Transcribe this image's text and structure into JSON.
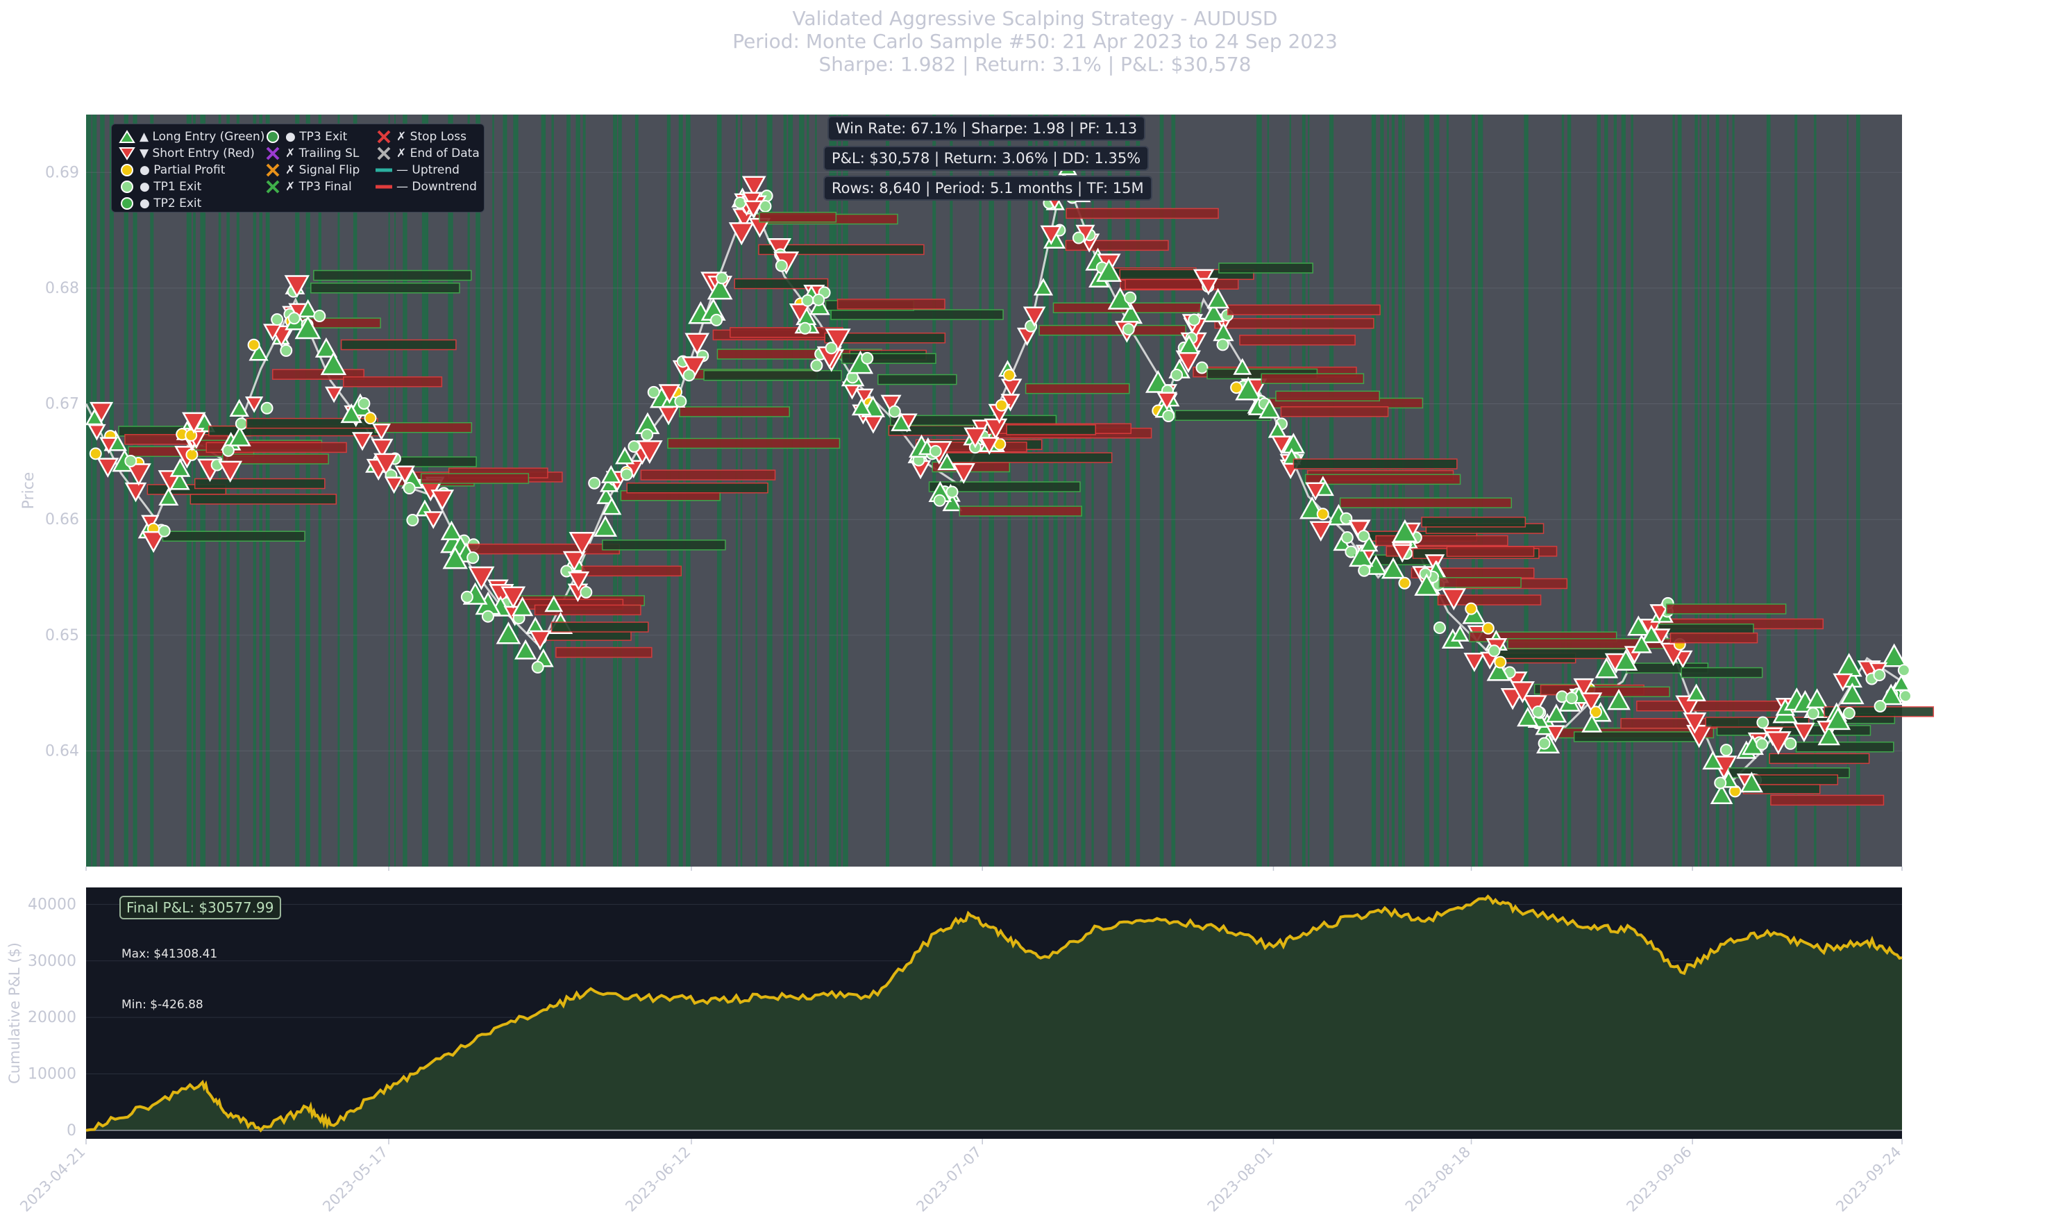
{
  "title": {
    "line1": "Validated Aggressive Scalping Strategy - AUDUSD",
    "line2": "Period: Monte Carlo Sample #50: 21 Apr 2023 to 24 Sep 2023",
    "line3": "Sharpe: 1.982 | Return: 3.1% | P&L: $30,578"
  },
  "stats": {
    "line1": "Win Rate: 67.1%  |  Sharpe: 1.98  |  PF: 1.13",
    "line2": "P&L: $30,578  |  Return: 3.06%  |  DD: 1.35%",
    "line3": "Rows: 8,640  |  Period: 5.1 months  |  TF: 15M"
  },
  "legend": [
    {
      "icon": "triangle-up-green",
      "label": "▲ Long Entry (Green)"
    },
    {
      "icon": "triangle-down-red",
      "label": "▼ Short Entry (Red)"
    },
    {
      "icon": "circle-yellow",
      "label": "● Partial Profit"
    },
    {
      "icon": "circle-lightgreen",
      "label": "● TP1 Exit"
    },
    {
      "icon": "circle-green",
      "label": "● TP2 Exit"
    },
    {
      "icon": "circle-darkgreen",
      "label": "● TP3 Exit"
    },
    {
      "icon": "x-purple",
      "label": "✗ Trailing SL"
    },
    {
      "icon": "x-orange",
      "label": "✗ Signal Flip"
    },
    {
      "icon": "x-green",
      "label": "✗ TP3 Final"
    },
    {
      "icon": "x-red",
      "label": "✗ Stop Loss"
    },
    {
      "icon": "x-gray",
      "label": "✗ End of Data"
    },
    {
      "icon": "line-teal",
      "label": "— Uptrend"
    },
    {
      "icon": "line-red",
      "label": "— Downtrend"
    }
  ],
  "colors": {
    "price_bg": "#4b4f58",
    "band_green": "#1f6b45",
    "long": "#3fae4a",
    "short": "#e03c3c",
    "pnl_line": "#e0b511",
    "pnl_bg": "#131722",
    "pnl_fill": "#253d2b",
    "axis_text": "#c4c7d4"
  },
  "chart_data": [
    {
      "type": "line",
      "name": "price",
      "ylabel": "Price",
      "ylim": [
        0.63,
        0.695
      ],
      "xlim": [
        "2023-04-21",
        "2023-09-24"
      ],
      "yticks": [
        0.64,
        0.65,
        0.66,
        0.67,
        0.68,
        0.69
      ],
      "xticks": [
        "2023-04-21",
        "2023-05-17",
        "2023-06-12",
        "2023-07-07",
        "2023-08-01",
        "2023-08-18",
        "2023-09-06",
        "2023-09-24"
      ],
      "x": [
        "2023-04-21",
        "2023-04-24",
        "2023-04-27",
        "2023-04-30",
        "2023-05-03",
        "2023-05-06",
        "2023-05-09",
        "2023-05-12",
        "2023-05-15",
        "2023-05-18",
        "2023-05-21",
        "2023-05-24",
        "2023-05-27",
        "2023-05-30",
        "2023-06-02",
        "2023-06-05",
        "2023-06-08",
        "2023-06-11",
        "2023-06-14",
        "2023-06-17",
        "2023-06-20",
        "2023-06-23",
        "2023-06-26",
        "2023-06-29",
        "2023-07-02",
        "2023-07-05",
        "2023-07-08",
        "2023-07-11",
        "2023-07-14",
        "2023-07-17",
        "2023-07-20",
        "2023-07-23",
        "2023-07-26",
        "2023-07-29",
        "2023-08-01",
        "2023-08-04",
        "2023-08-07",
        "2023-08-10",
        "2023-08-13",
        "2023-08-16",
        "2023-08-19",
        "2023-08-22",
        "2023-08-25",
        "2023-08-28",
        "2023-08-31",
        "2023-09-03",
        "2023-09-06",
        "2023-09-09",
        "2023-09-12",
        "2023-09-15",
        "2023-09-18",
        "2023-09-21",
        "2023-09-24"
      ],
      "values": [
        0.67,
        0.664,
        0.66,
        0.667,
        0.665,
        0.673,
        0.679,
        0.672,
        0.668,
        0.663,
        0.662,
        0.656,
        0.652,
        0.649,
        0.655,
        0.662,
        0.667,
        0.671,
        0.68,
        0.688,
        0.681,
        0.677,
        0.672,
        0.669,
        0.665,
        0.663,
        0.669,
        0.676,
        0.69,
        0.682,
        0.676,
        0.671,
        0.679,
        0.674,
        0.669,
        0.662,
        0.659,
        0.655,
        0.658,
        0.652,
        0.649,
        0.646,
        0.641,
        0.644,
        0.646,
        0.652,
        0.644,
        0.637,
        0.64,
        0.644,
        0.643,
        0.648,
        0.646
      ]
    },
    {
      "type": "area",
      "name": "cumulative_pnl",
      "ylabel": "Cumulative P&L ($)",
      "ylim": [
        -1500,
        43000
      ],
      "yticks": [
        0,
        10000,
        20000,
        30000,
        40000
      ],
      "x": [
        "2023-04-21",
        "2023-04-26",
        "2023-05-01",
        "2023-05-03",
        "2023-05-06",
        "2023-05-10",
        "2023-05-12",
        "2023-05-16",
        "2023-05-20",
        "2023-05-25",
        "2023-05-30",
        "2023-06-03",
        "2023-06-08",
        "2023-06-13",
        "2023-06-18",
        "2023-06-23",
        "2023-06-28",
        "2023-07-03",
        "2023-07-06",
        "2023-07-09",
        "2023-07-12",
        "2023-07-17",
        "2023-07-22",
        "2023-07-27",
        "2023-08-01",
        "2023-08-05",
        "2023-08-10",
        "2023-08-14",
        "2023-08-19",
        "2023-08-22",
        "2023-08-28",
        "2023-09-01",
        "2023-09-05",
        "2023-09-09",
        "2023-09-13",
        "2023-09-17",
        "2023-09-21",
        "2023-09-24"
      ],
      "values": [
        0,
        4000,
        8500,
        3000,
        0,
        4000,
        1000,
        6500,
        11000,
        17000,
        21000,
        24500,
        23500,
        23000,
        23500,
        24000,
        24000,
        35000,
        38000,
        34000,
        30500,
        36000,
        37500,
        36000,
        32500,
        36000,
        39000,
        37000,
        41000,
        39000,
        36000,
        35500,
        28000,
        33500,
        35000,
        32000,
        33500,
        30578
      ],
      "annotations": {
        "final": "Final P&L: $30577.99",
        "max": "Max: $41308.41",
        "min": "Min: $-426.88"
      }
    }
  ]
}
